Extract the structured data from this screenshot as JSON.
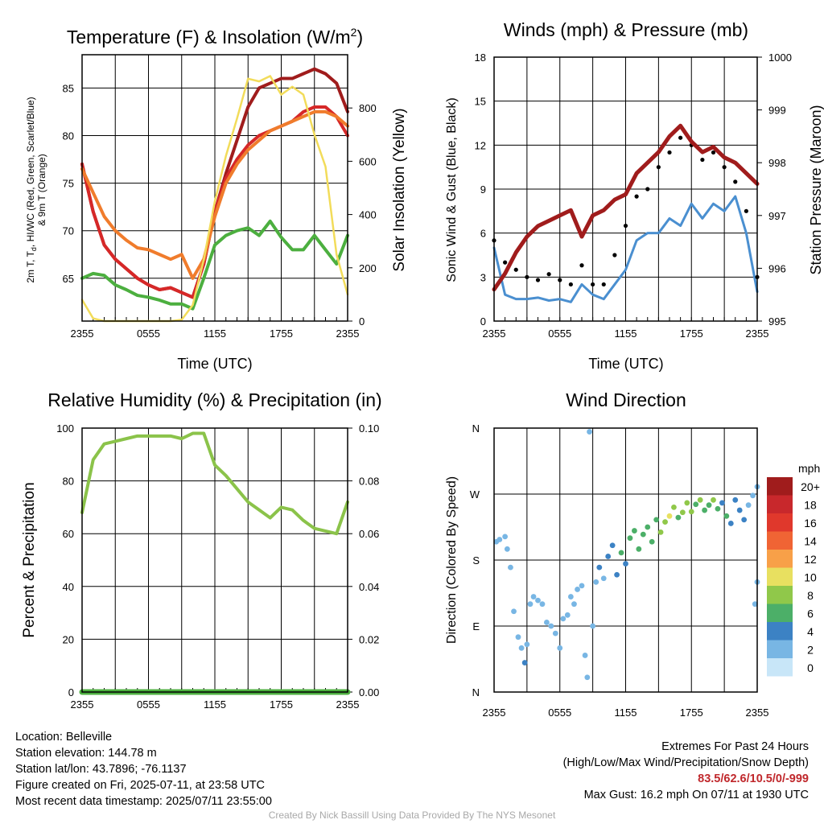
{
  "chart_data": [
    {
      "type": "line",
      "title": "Temperature (F) & Insolation (W/m²)",
      "xlabel": "Time (UTC)",
      "ylabel": "2m T, Td, HI/WC (Red, Green, Scarlet/Blue) & 9m T (Orange)",
      "y2label": "Solar Insolation (Yellow)",
      "xticks": [
        "2355",
        "0555",
        "1155",
        "1755",
        "2355"
      ],
      "ylim": [
        60.5,
        88.5
      ],
      "yticks": [
        65,
        70,
        75,
        80,
        85
      ],
      "y2lim": [
        0,
        1000
      ],
      "y2ticks": [
        0,
        200,
        400,
        600,
        800
      ],
      "x": [
        0,
        1,
        2,
        3,
        4,
        5,
        6,
        7,
        8,
        9,
        10,
        11,
        12,
        13,
        14,
        15,
        16,
        17,
        18,
        19,
        20,
        21,
        22,
        23,
        24
      ],
      "series": [
        {
          "color": "#a01c1c",
          "axis": "left",
          "values": [
            77.0,
            72.0,
            68.5,
            67.0,
            66.0,
            65.0,
            64.3,
            63.8,
            64.0,
            63.5,
            63.0,
            66.5,
            72.0,
            76.0,
            79.5,
            83.0,
            85.0,
            85.5,
            86.0,
            86.0,
            86.5,
            87.0,
            86.5,
            85.5,
            82.5
          ]
        },
        {
          "color": "#d62828",
          "axis": "left",
          "values": [
            77.0,
            72.0,
            68.5,
            67.0,
            66.0,
            65.0,
            64.3,
            63.8,
            64.0,
            63.5,
            63.0,
            66.5,
            72.0,
            75.5,
            77.5,
            79.0,
            80.0,
            80.5,
            81.0,
            81.5,
            82.5,
            83.0,
            83.0,
            82.0,
            80.0
          ]
        },
        {
          "color": "#f07c2c",
          "axis": "left",
          "values": [
            76.5,
            74.0,
            71.5,
            70.0,
            69.0,
            68.2,
            68.0,
            67.5,
            67.0,
            67.5,
            65.0,
            67.0,
            71.5,
            75.0,
            77.0,
            78.5,
            79.5,
            80.5,
            81.0,
            81.5,
            82.0,
            82.5,
            82.5,
            82.0,
            81.0
          ]
        },
        {
          "color": "#4caf3f",
          "axis": "left",
          "values": [
            65.0,
            65.5,
            65.3,
            64.3,
            63.8,
            63.2,
            63.0,
            62.7,
            62.3,
            62.3,
            61.8,
            65.0,
            68.5,
            69.5,
            70.0,
            70.3,
            69.5,
            71.0,
            69.3,
            68.0,
            68.0,
            69.5,
            68.0,
            66.5,
            69.5
          ]
        },
        {
          "color": "#f2dc5a",
          "axis": "right",
          "values": [
            80,
            10,
            0,
            0,
            0,
            0,
            0,
            0,
            0,
            5,
            60,
            230,
            450,
            620,
            760,
            910,
            900,
            920,
            850,
            880,
            850,
            700,
            580,
            250,
            100
          ]
        }
      ]
    },
    {
      "type": "line",
      "title": "Winds (mph) & Pressure (mb)",
      "xlabel": "Time (UTC)",
      "ylabel": "Sonic Wind & Gust (Blue, Black)",
      "y2label": "Station Pressure (Maroon)",
      "xticks": [
        "2355",
        "0555",
        "1155",
        "1755",
        "2355"
      ],
      "ylim": [
        0,
        18
      ],
      "yticks": [
        0,
        3,
        6,
        9,
        12,
        15,
        18
      ],
      "y2lim": [
        995,
        1000
      ],
      "y2ticks": [
        995,
        996,
        997,
        998,
        999,
        1000
      ],
      "x": [
        0,
        1,
        2,
        3,
        4,
        5,
        6,
        7,
        8,
        9,
        10,
        11,
        12,
        13,
        14,
        15,
        16,
        17,
        18,
        19,
        20,
        21,
        22,
        23,
        24
      ],
      "series": [
        {
          "color": "#4a8fd0",
          "axis": "left",
          "values": [
            5.0,
            1.8,
            1.5,
            1.5,
            1.6,
            1.4,
            1.5,
            1.3,
            2.5,
            1.8,
            1.5,
            2.5,
            3.5,
            5.5,
            6.0,
            6.0,
            7.0,
            6.5,
            8.0,
            7.0,
            8.0,
            7.5,
            8.5,
            6.0,
            2.0
          ]
        },
        {
          "color": "#000000",
          "axis": "left",
          "style": "dots",
          "values": [
            5.5,
            4.0,
            3.5,
            3.0,
            2.8,
            3.2,
            2.8,
            2.5,
            3.8,
            2.5,
            2.5,
            4.5,
            6.5,
            8.5,
            9.0,
            10.5,
            11.5,
            12.5,
            12.0,
            11.0,
            11.5,
            10.5,
            9.5,
            7.5,
            3.0
          ]
        },
        {
          "color": "#a01c1c",
          "axis": "right",
          "values": [
            995.6,
            995.9,
            996.3,
            996.6,
            996.8,
            996.9,
            997.0,
            997.1,
            996.6,
            997.0,
            997.1,
            997.3,
            997.4,
            997.8,
            998.0,
            998.2,
            998.5,
            998.7,
            998.4,
            998.2,
            998.3,
            998.1,
            998.0,
            997.8,
            997.6
          ]
        }
      ]
    },
    {
      "type": "line",
      "title": "Relative Humidity (%) & Precipitation (in)",
      "ylabel": "Percent & Precipitation",
      "xticks": [
        "2355",
        "0555",
        "1155",
        "1755",
        "2355"
      ],
      "ylim": [
        0,
        100
      ],
      "yticks": [
        0,
        20,
        40,
        60,
        80,
        100
      ],
      "y2lim": [
        0,
        0.1
      ],
      "y2ticks": [
        "0.00",
        "0.02",
        "0.04",
        "0.06",
        "0.08",
        "0.10"
      ],
      "x": [
        0,
        1,
        2,
        3,
        4,
        5,
        6,
        7,
        8,
        9,
        10,
        11,
        12,
        13,
        14,
        15,
        16,
        17,
        18,
        19,
        20,
        21,
        22,
        23,
        24
      ],
      "series": [
        {
          "color": "#8bc34a",
          "axis": "left",
          "values": [
            68,
            88,
            94,
            95,
            96,
            97,
            97,
            97,
            97,
            96,
            98,
            98,
            86,
            82,
            77,
            72,
            69,
            66,
            70,
            69,
            65,
            62,
            61,
            60,
            72
          ]
        },
        {
          "color": "#4caf3f",
          "axis": "right",
          "values": [
            0,
            0,
            0,
            0,
            0,
            0,
            0,
            0,
            0,
            0,
            0,
            0,
            0,
            0,
            0,
            0,
            0,
            0,
            0,
            0,
            0,
            0,
            0,
            0,
            0
          ]
        }
      ]
    },
    {
      "type": "scatter",
      "title": "Wind Direction",
      "ylabel": "Direction (Colored By Speed)",
      "xticks": [
        "2355",
        "0555",
        "1155",
        "1755",
        "2355"
      ],
      "yticks": [
        "N",
        "E",
        "S",
        "W",
        "N"
      ],
      "ylim": [
        0,
        360
      ],
      "colorbar": {
        "unit": "mph",
        "labels": [
          "20+",
          "18",
          "16",
          "14",
          "12",
          "10",
          "8",
          "6",
          "4",
          "2",
          "0"
        ],
        "colors": [
          "#a01c1c",
          "#c8282c",
          "#e0382c",
          "#f06434",
          "#f8a048",
          "#e8e060",
          "#90c84a",
          "#4caf68",
          "#3c82c4",
          "#78b6e4",
          "#c8e6f8"
        ]
      },
      "points": [
        [
          0.2,
          205,
          2
        ],
        [
          0.5,
          208,
          2
        ],
        [
          1.0,
          212,
          2
        ],
        [
          1.2,
          195,
          2
        ],
        [
          1.5,
          170,
          2
        ],
        [
          1.8,
          110,
          2
        ],
        [
          2.2,
          75,
          3
        ],
        [
          2.5,
          60,
          2
        ],
        [
          2.8,
          40,
          4
        ],
        [
          3.0,
          65,
          2
        ],
        [
          3.3,
          120,
          2
        ],
        [
          3.6,
          130,
          3
        ],
        [
          4.0,
          125,
          2
        ],
        [
          4.4,
          120,
          2
        ],
        [
          4.8,
          95,
          2
        ],
        [
          5.2,
          90,
          2
        ],
        [
          5.6,
          80,
          3
        ],
        [
          6.0,
          60,
          2
        ],
        [
          6.3,
          100,
          2
        ],
        [
          6.7,
          105,
          3
        ],
        [
          7.0,
          130,
          3
        ],
        [
          7.3,
          120,
          2
        ],
        [
          7.6,
          140,
          3
        ],
        [
          8.0,
          145,
          2
        ],
        [
          8.3,
          50,
          2
        ],
        [
          8.5,
          20,
          2
        ],
        [
          8.7,
          355,
          2
        ],
        [
          9.0,
          90,
          2
        ],
        [
          9.3,
          150,
          3
        ],
        [
          9.6,
          170,
          4
        ],
        [
          10.0,
          155,
          3
        ],
        [
          10.4,
          185,
          4
        ],
        [
          10.8,
          200,
          5
        ],
        [
          11.2,
          160,
          5
        ],
        [
          11.6,
          190,
          6
        ],
        [
          12.0,
          175,
          5
        ],
        [
          12.4,
          210,
          6
        ],
        [
          12.8,
          220,
          6
        ],
        [
          13.2,
          195,
          6
        ],
        [
          13.6,
          215,
          7
        ],
        [
          14.0,
          225,
          6
        ],
        [
          14.4,
          205,
          7
        ],
        [
          14.8,
          235,
          7
        ],
        [
          15.2,
          218,
          8
        ],
        [
          15.6,
          232,
          8
        ],
        [
          16.0,
          240,
          10
        ],
        [
          16.4,
          252,
          8
        ],
        [
          16.8,
          238,
          7
        ],
        [
          17.2,
          245,
          8
        ],
        [
          17.6,
          258,
          8
        ],
        [
          18.0,
          246,
          9
        ],
        [
          18.4,
          256,
          7
        ],
        [
          18.8,
          262,
          8
        ],
        [
          19.2,
          248,
          7
        ],
        [
          19.6,
          255,
          6
        ],
        [
          20.0,
          262,
          8
        ],
        [
          20.4,
          250,
          6
        ],
        [
          20.8,
          258,
          5
        ],
        [
          21.2,
          240,
          6
        ],
        [
          21.6,
          230,
          5
        ],
        [
          22.0,
          262,
          5
        ],
        [
          22.4,
          248,
          4
        ],
        [
          22.8,
          235,
          4
        ],
        [
          23.2,
          255,
          3
        ],
        [
          23.6,
          268,
          2
        ],
        [
          24.0,
          280,
          2
        ],
        [
          24.0,
          150,
          2
        ],
        [
          23.8,
          120,
          3
        ]
      ]
    }
  ],
  "panels": {
    "temp": {
      "title_main": "Temperature (F) & Insolation (W/m",
      "title_sup": "2",
      "title_end": ")",
      "xlabel": "Time (UTC)",
      "ylabel_line1": "2m T, T",
      "ylabel_sub": "d",
      "ylabel_line1_rest": ", HI/WC (Red, Green, Scarlet/Blue)",
      "ylabel_line2": "& 9m T (Orange)",
      "y2label": "Solar Insolation (Yellow)"
    },
    "wind": {
      "title": "Winds (mph) & Pressure (mb)",
      "xlabel": "Time (UTC)",
      "ylabel": "Sonic Wind & Gust (Blue, Black)",
      "y2label": "Station Pressure (Maroon)"
    },
    "rh": {
      "title": "Relative Humidity (%) & Precipitation (in)",
      "ylabel": "Percent & Precipitation"
    },
    "dir": {
      "title": "Wind Direction",
      "ylabel": "Direction (Colored By Speed)",
      "colorbar_unit": "mph"
    }
  },
  "info": {
    "location": "Location: Belleville",
    "elevation": "Station elevation: 144.78 m",
    "latlon": "Station lat/lon: 43.7896; -76.1137",
    "created": "Figure created on Fri, 2025-07-11, at 23:58 UTC",
    "recent": "Most recent data timestamp: 2025/07/11 23:55:00"
  },
  "extremes": {
    "heading": "Extremes For Past 24 Hours",
    "subheading": "(High/Low/Max Wind/Precipitation/Snow Depth)",
    "values": "83.5/62.6/10.5/0/-999",
    "gust": "Max Gust: 16.2 mph On 07/11 at 1930 UTC",
    "highlight_color": "#c0282c"
  },
  "credit": "Created By Nick Bassill Using Data Provided By The NYS Mesonet"
}
